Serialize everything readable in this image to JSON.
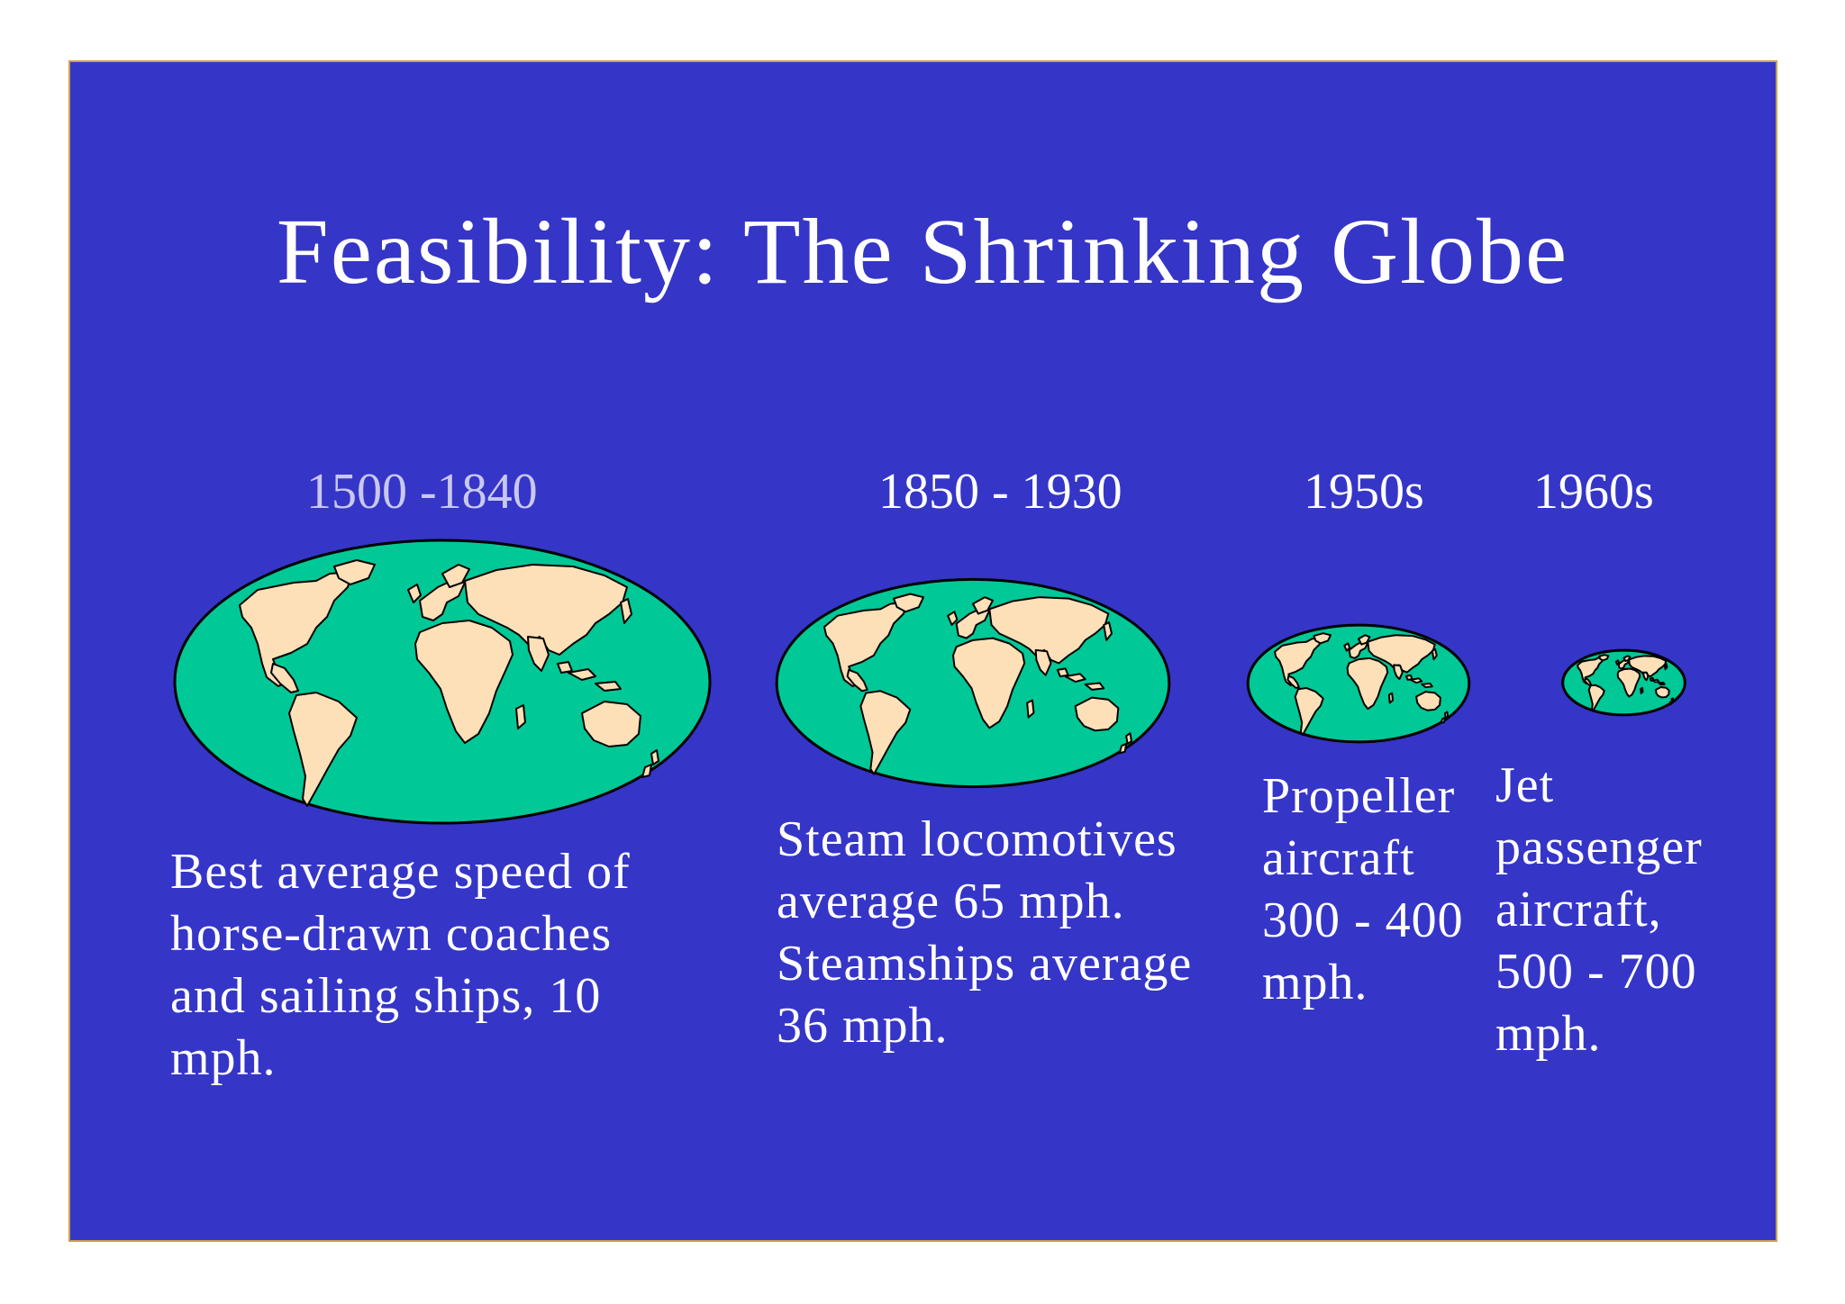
{
  "slide": {
    "title": "Feasibility: The Shrinking Globe",
    "background_color": "#3535c8",
    "ocean_color": "#00c896",
    "land_color": "#fde0b8",
    "eras": [
      {
        "period": "1500 -1840",
        "period_color": "#c8c8ee",
        "caption_lines": [
          "Best average speed of",
          "horse-drawn coaches",
          "and sailing ships, 10",
          "mph."
        ],
        "globe_icon": "world-map-icon"
      },
      {
        "period": "1850 - 1930",
        "period_color": "#ffffff",
        "caption_lines": [
          "Steam locomotives",
          "average 65 mph.",
          "Steamships average",
          "36 mph."
        ],
        "globe_icon": "world-map-icon"
      },
      {
        "period": "1950s",
        "period_color": "#ffffff",
        "caption_lines": [
          "Propeller",
          "aircraft",
          "300 - 400",
          "mph."
        ],
        "globe_icon": "world-map-icon"
      },
      {
        "period": "1960s",
        "period_color": "#ffffff",
        "caption_lines": [
          "Jet",
          "passenger",
          "aircraft,",
          "500 - 700",
          "mph."
        ],
        "globe_icon": "world-map-icon"
      }
    ]
  }
}
